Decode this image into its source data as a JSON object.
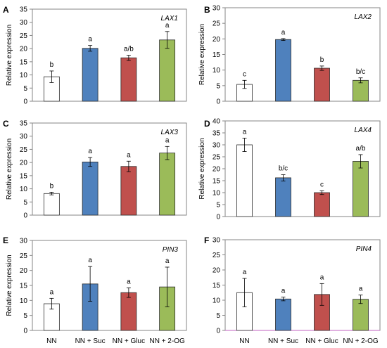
{
  "bar_colors": [
    "#ffffff",
    "#4f81bd",
    "#c0504d",
    "#9bbb59"
  ],
  "axis_color": "#868686",
  "chart_data": [
    {
      "type": "bar",
      "panel": "A",
      "gene": "LAX1",
      "ylabel": "Relative expression",
      "ylim": [
        0,
        35
      ],
      "yticks": [
        0,
        5,
        10,
        15,
        20,
        25,
        30,
        35
      ],
      "categories": [
        "NN",
        "NN + Suc",
        "NN + Gluc",
        "NN + 2-OG"
      ],
      "values": [
        9.3,
        20.1,
        16.5,
        23.3
      ],
      "errors": [
        2.2,
        1.1,
        1.0,
        3.2
      ],
      "labels": [
        "b",
        "a",
        "a/b",
        "a"
      ],
      "show_categories": false
    },
    {
      "type": "bar",
      "panel": "B",
      "gene": "LAX2",
      "ylabel": "Relative expression",
      "ylim": [
        0,
        30
      ],
      "yticks": [
        0,
        5,
        10,
        15,
        20,
        25,
        30
      ],
      "categories": [
        "NN",
        "NN + Suc",
        "NN + Gluc",
        "NN + 2-OG"
      ],
      "values": [
        5.4,
        19.8,
        10.6,
        6.7
      ],
      "errors": [
        1.3,
        0.3,
        0.7,
        0.8
      ],
      "labels": [
        "c",
        "a",
        "b",
        "b/c"
      ],
      "show_categories": false
    },
    {
      "type": "bar",
      "panel": "C",
      "gene": "LAX3",
      "ylabel": "Relative expression",
      "ylim": [
        0,
        35
      ],
      "yticks": [
        0,
        5,
        10,
        15,
        20,
        25,
        30,
        35
      ],
      "categories": [
        "NN",
        "NN + Suc",
        "NN + Gluc",
        "NN + 2-OG"
      ],
      "values": [
        8.2,
        20.2,
        18.5,
        23.6
      ],
      "errors": [
        0.5,
        1.7,
        2.0,
        2.5
      ],
      "labels": [
        "b",
        "a",
        "a",
        "a"
      ],
      "show_categories": false
    },
    {
      "type": "bar",
      "panel": "D",
      "gene": "LAX4",
      "ylabel": "Relative expression",
      "ylim": [
        0,
        40
      ],
      "yticks": [
        0,
        5,
        10,
        15,
        20,
        25,
        30,
        35,
        40
      ],
      "categories": [
        "NN",
        "NN + Suc",
        "NN + Gluc",
        "NN + 2-OG"
      ],
      "values": [
        30.0,
        16.2,
        10.0,
        23.1
      ],
      "errors": [
        2.8,
        1.3,
        0.8,
        2.8
      ],
      "labels": [
        "a",
        "b/c",
        "c",
        "a/b"
      ],
      "show_categories": false
    },
    {
      "type": "bar",
      "panel": "E",
      "gene": "PIN3",
      "ylabel": "Relative expression",
      "ylim": [
        0,
        30
      ],
      "yticks": [
        0,
        5,
        10,
        15,
        20,
        25,
        30
      ],
      "categories": [
        "NN",
        "NN + Suc",
        "NN + Gluc",
        "NN + 2-OG"
      ],
      "values": [
        8.9,
        15.5,
        12.6,
        14.5
      ],
      "errors": [
        1.8,
        5.8,
        1.6,
        6.6
      ],
      "labels": [
        "a",
        "a",
        "a",
        "a"
      ],
      "show_categories": true
    },
    {
      "type": "bar",
      "panel": "F",
      "gene": "PIN4",
      "ylabel": "",
      "ylim": [
        0,
        30
      ],
      "yticks": [
        0,
        5,
        10,
        15,
        20,
        25,
        30
      ],
      "categories": [
        "NN",
        "NN + Suc",
        "NN + Gluc",
        "NN + 2-OG"
      ],
      "values": [
        12.5,
        10.4,
        11.9,
        10.3
      ],
      "errors": [
        4.7,
        0.6,
        3.6,
        1.4
      ],
      "labels": [
        "a",
        "a",
        "a",
        "a"
      ],
      "show_categories": true
    }
  ]
}
